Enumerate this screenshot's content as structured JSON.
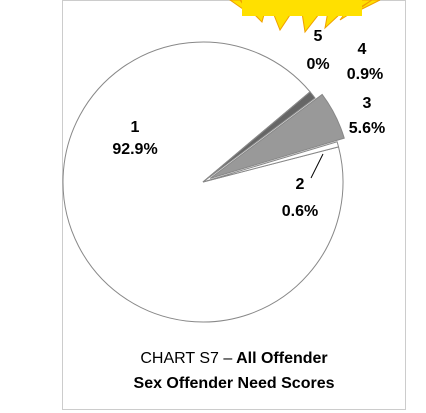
{
  "chart_data": {
    "type": "pie",
    "title_prefix": "CHART S7 –",
    "title": "All Offender",
    "subtitle": "Sex Offender Need Scores",
    "categories": [
      "1",
      "2",
      "3",
      "4",
      "5"
    ],
    "values": [
      92.9,
      0.6,
      5.6,
      0.9,
      0
    ],
    "value_labels": [
      "92.9%",
      "0.6%",
      "5.6%",
      "0.9%",
      "0%"
    ],
    "colors": [
      "#ffffff",
      "#ffffff",
      "#999999",
      "#666666",
      "#000000"
    ]
  }
}
